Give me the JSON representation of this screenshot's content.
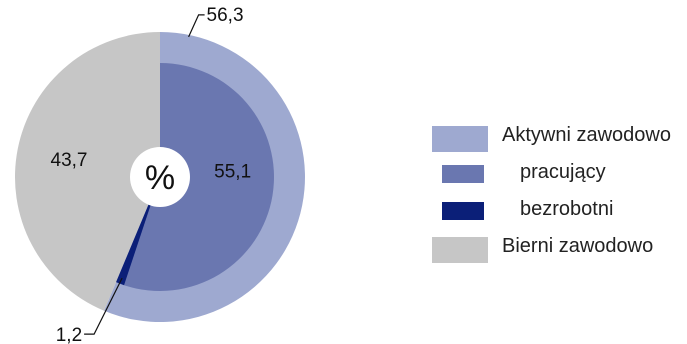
{
  "chart_data": {
    "type": "pie",
    "unit_label": "%",
    "outer_ring": [
      {
        "name": "Aktywni zawodowo",
        "value": 56.3,
        "label": "56,3",
        "color": "#9ea9d0"
      },
      {
        "name": "Bierni zawodowo",
        "value": 43.7,
        "label": "43,7",
        "color": "#c6c6c6"
      }
    ],
    "inner_ring": [
      {
        "name": "pracujący",
        "value": 55.1,
        "label": "55,1",
        "color": "#6a77b0"
      },
      {
        "name": "bezrobotni",
        "value": 1.2,
        "label": "1,2",
        "color": "#0b1f78"
      }
    ],
    "legend": {
      "position": "right",
      "items": [
        {
          "label": "Aktywni zawodowo",
          "color": "#9ea9d0",
          "indent": false
        },
        {
          "label": "pracujący",
          "color": "#6a77b0",
          "indent": true
        },
        {
          "label": "bezrobotni",
          "color": "#0b1f78",
          "indent": true
        },
        {
          "label": "Bierni zawodowo",
          "color": "#c6c6c6",
          "indent": false
        }
      ]
    }
  }
}
